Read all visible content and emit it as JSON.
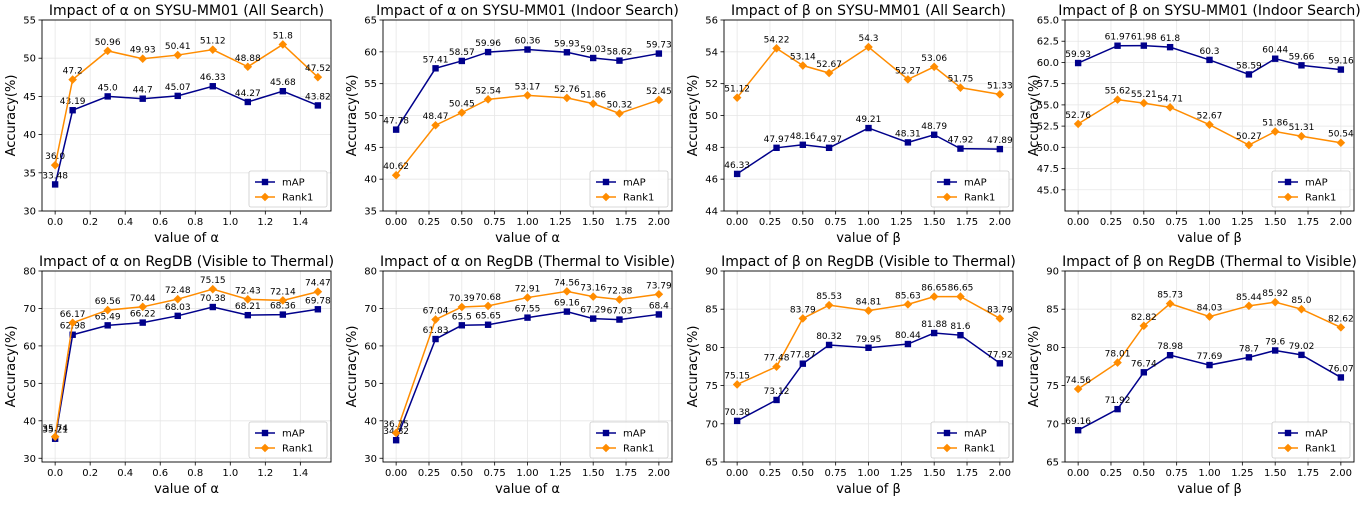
{
  "colors": {
    "mAP": "#00008b",
    "Rank1": "#ff8c00",
    "grid": "#e6e6e6",
    "axis": "#000000"
  },
  "chart_data": [
    {
      "type": "line",
      "title": "Impact of α on SYSU-MM01 (All Search)",
      "xlabel": "value of α",
      "ylabel": "Accuracy(%)",
      "x": [
        0.0,
        0.1,
        0.3,
        0.5,
        0.7,
        0.9,
        1.1,
        1.3,
        1.5
      ],
      "xlim": [
        -0.075,
        1.575
      ],
      "ylim": [
        30,
        55
      ],
      "xticks": [
        "0.0",
        "0.2",
        "0.4",
        "0.6",
        "0.8",
        "1.0",
        "1.2",
        "1.4"
      ],
      "yticks": [
        "30",
        "35",
        "40",
        "45",
        "50",
        "55"
      ],
      "grid": true,
      "legend": "lower-right",
      "series": [
        {
          "name": "mAP",
          "values": [
            33.48,
            43.19,
            45.0,
            44.7,
            45.07,
            46.33,
            44.27,
            45.68,
            43.82
          ],
          "labels": [
            "33.48",
            "43.19",
            "45.0",
            "44.7",
            "45.07",
            "46.33",
            "44.27",
            "45.68",
            "43.82"
          ]
        },
        {
          "name": "Rank1",
          "values": [
            36.0,
            47.2,
            50.96,
            49.93,
            50.41,
            51.12,
            48.88,
            51.8,
            47.52
          ],
          "labels": [
            "36.0",
            "47.2",
            "50.96",
            "49.93",
            "50.41",
            "51.12",
            "48.88",
            "51.8",
            "47.52"
          ]
        }
      ]
    },
    {
      "type": "line",
      "title": "Impact of α on SYSU-MM01 (Indoor Search)",
      "xlabel": "value of α",
      "ylabel": "Accuracy(%)",
      "x": [
        0.0,
        0.3,
        0.5,
        0.7,
        1.0,
        1.3,
        1.5,
        1.7,
        2.0
      ],
      "xlim": [
        -0.1,
        2.1
      ],
      "ylim": [
        35,
        65
      ],
      "xticks": [
        "0.00",
        "0.25",
        "0.50",
        "0.75",
        "1.00",
        "1.25",
        "1.50",
        "1.75",
        "2.00"
      ],
      "yticks": [
        "35",
        "40",
        "45",
        "50",
        "55",
        "60",
        "65"
      ],
      "grid": true,
      "legend": "lower-right",
      "series": [
        {
          "name": "mAP",
          "values": [
            47.78,
            57.41,
            58.57,
            59.96,
            60.36,
            59.93,
            59.03,
            58.62,
            59.73
          ],
          "labels": [
            "47.78",
            "57.41",
            "58.57",
            "59.96",
            "60.36",
            "59.93",
            "59.03",
            "58.62",
            "59.73"
          ]
        },
        {
          "name": "Rank1",
          "values": [
            40.62,
            48.47,
            50.45,
            52.54,
            53.17,
            52.76,
            51.86,
            50.32,
            52.45
          ],
          "labels": [
            "40.62",
            "48.47",
            "50.45",
            "52.54",
            "53.17",
            "52.76",
            "51.86",
            "50.32",
            "52.45"
          ]
        }
      ]
    },
    {
      "type": "line",
      "title": "Impact of β on SYSU-MM01 (All Search)",
      "xlabel": "value of β",
      "ylabel": "Accuracy(%)",
      "x": [
        0.0,
        0.3,
        0.5,
        0.7,
        1.0,
        1.3,
        1.5,
        1.7,
        2.0
      ],
      "xlim": [
        -0.1,
        2.1
      ],
      "ylim": [
        44,
        56
      ],
      "xticks": [
        "0.00",
        "0.25",
        "0.50",
        "0.75",
        "1.00",
        "1.25",
        "1.50",
        "1.75",
        "2.00"
      ],
      "yticks": [
        "44",
        "46",
        "48",
        "50",
        "52",
        "54",
        "56"
      ],
      "grid": true,
      "legend": "lower-right",
      "series": [
        {
          "name": "mAP",
          "values": [
            46.33,
            47.97,
            48.16,
            47.97,
            49.21,
            48.31,
            48.79,
            47.92,
            47.89
          ],
          "labels": [
            "46.33",
            "47.97",
            "48.16",
            "47.97",
            "49.21",
            "48.31",
            "48.79",
            "47.92",
            "47.89"
          ]
        },
        {
          "name": "Rank1",
          "values": [
            51.12,
            54.22,
            53.14,
            52.67,
            54.3,
            52.27,
            53.06,
            51.75,
            51.33
          ],
          "labels": [
            "51.12",
            "54.22",
            "53.14",
            "52.67",
            "54.3",
            "52.27",
            "53.06",
            "51.75",
            "51.33"
          ]
        }
      ]
    },
    {
      "type": "line",
      "title": "Impact of β on SYSU-MM01 (Indoor Search)",
      "xlabel": "value of β",
      "ylabel": "Accuracy(%)",
      "x": [
        0.0,
        0.3,
        0.5,
        0.7,
        1.0,
        1.3,
        1.5,
        1.7,
        2.0
      ],
      "xlim": [
        -0.1,
        2.1
      ],
      "ylim": [
        42.5,
        65
      ],
      "xticks": [
        "0.00",
        "0.25",
        "0.50",
        "0.75",
        "1.00",
        "1.25",
        "1.50",
        "1.75",
        "2.00"
      ],
      "yticks": [
        "45.0",
        "47.5",
        "50.0",
        "52.5",
        "55.0",
        "57.5",
        "60.0",
        "62.5",
        "65.0"
      ],
      "grid": true,
      "legend": "lower-right",
      "series": [
        {
          "name": "mAP",
          "values": [
            59.93,
            61.97,
            61.98,
            61.8,
            60.3,
            58.59,
            60.44,
            59.66,
            59.16
          ],
          "labels": [
            "59.93",
            "61.97",
            "61.98",
            "61.8",
            "60.3",
            "58.59",
            "60.44",
            "59.66",
            "59.16"
          ]
        },
        {
          "name": "Rank1",
          "values": [
            52.76,
            55.62,
            55.21,
            54.71,
            52.67,
            50.27,
            51.86,
            51.31,
            50.54
          ],
          "labels": [
            "52.76",
            "55.62",
            "55.21",
            "54.71",
            "52.67",
            "50.27",
            "51.86",
            "51.31",
            "50.54"
          ]
        }
      ]
    },
    {
      "type": "line",
      "title": "Impact of α on RegDB (Visible to Thermal)",
      "xlabel": "value of α",
      "ylabel": "Accuracy(%)",
      "x": [
        0.0,
        0.1,
        0.3,
        0.5,
        0.7,
        0.9,
        1.1,
        1.3,
        1.5
      ],
      "xlim": [
        -0.075,
        1.575
      ],
      "ylim": [
        29,
        80
      ],
      "xticks": [
        "0.0",
        "0.2",
        "0.4",
        "0.6",
        "0.8",
        "1.0",
        "1.2",
        "1.4"
      ],
      "yticks": [
        "30",
        "40",
        "50",
        "60",
        "70",
        "80"
      ],
      "grid": true,
      "legend": "lower-right",
      "series": [
        {
          "name": "mAP",
          "values": [
            35.21,
            62.98,
            65.49,
            66.22,
            68.03,
            70.38,
            68.21,
            68.36,
            69.78
          ],
          "labels": [
            "35.21",
            "62.98",
            "65.49",
            "66.22",
            "68.03",
            "70.38",
            "68.21",
            "68.36",
            "69.78"
          ]
        },
        {
          "name": "Rank1",
          "values": [
            35.74,
            66.17,
            69.56,
            70.44,
            72.48,
            75.15,
            72.43,
            72.14,
            74.47
          ],
          "labels": [
            "35.74",
            "66.17",
            "69.56",
            "70.44",
            "72.48",
            "75.15",
            "72.43",
            "72.14",
            "74.47"
          ]
        }
      ]
    },
    {
      "type": "line",
      "title": "Impact of α on RegDB (Thermal to Visible)",
      "xlabel": "value of α",
      "ylabel": "Accuracy(%)",
      "x": [
        0.0,
        0.3,
        0.5,
        0.7,
        1.0,
        1.3,
        1.5,
        1.7,
        2.0
      ],
      "xlim": [
        -0.1,
        2.1
      ],
      "ylim": [
        29,
        80
      ],
      "xticks": [
        "0.00",
        "0.25",
        "0.50",
        "0.75",
        "1.00",
        "1.25",
        "1.50",
        "1.75",
        "2.00"
      ],
      "yticks": [
        "30",
        "40",
        "50",
        "60",
        "70",
        "80"
      ],
      "grid": true,
      "legend": "lower-right",
      "series": [
        {
          "name": "mAP",
          "values": [
            34.82,
            61.83,
            65.5,
            65.65,
            67.55,
            69.16,
            67.29,
            67.03,
            68.4
          ],
          "labels": [
            "34.82",
            "61.83",
            "65.5",
            "65.65",
            "67.55",
            "69.16",
            "67.29",
            "67.03",
            "68.4"
          ]
        },
        {
          "name": "Rank1",
          "values": [
            36.75,
            67.04,
            70.39,
            70.68,
            72.91,
            74.56,
            73.16,
            72.38,
            73.79
          ],
          "labels": [
            "36.75",
            "67.04",
            "70.39",
            "70.68",
            "72.91",
            "74.56",
            "73.16",
            "72.38",
            "73.79"
          ]
        }
      ]
    },
    {
      "type": "line",
      "title": "Impact of β on RegDB (Visible to Thermal)",
      "xlabel": "value of β",
      "ylabel": "Accuracy(%)",
      "x": [
        0.0,
        0.3,
        0.5,
        0.7,
        1.0,
        1.3,
        1.5,
        1.7,
        2.0
      ],
      "xlim": [
        -0.1,
        2.1
      ],
      "ylim": [
        65,
        90
      ],
      "xticks": [
        "0.00",
        "0.25",
        "0.50",
        "0.75",
        "1.00",
        "1.25",
        "1.50",
        "1.75",
        "2.00"
      ],
      "yticks": [
        "65",
        "70",
        "75",
        "80",
        "85",
        "90"
      ],
      "grid": true,
      "legend": "lower-right",
      "series": [
        {
          "name": "mAP",
          "values": [
            70.38,
            73.12,
            77.87,
            80.32,
            79.95,
            80.44,
            81.88,
            81.6,
            77.92
          ],
          "labels": [
            "70.38",
            "73.12",
            "77.87",
            "80.32",
            "79.95",
            "80.44",
            "81.88",
            "81.6",
            "77.92"
          ]
        },
        {
          "name": "Rank1",
          "values": [
            75.15,
            77.48,
            83.79,
            85.53,
            84.81,
            85.63,
            86.65,
            86.65,
            83.79
          ],
          "labels": [
            "75.15",
            "77.48",
            "83.79",
            "85.53",
            "84.81",
            "85.63",
            "86.65",
            "86.65",
            "83.79"
          ]
        }
      ]
    },
    {
      "type": "line",
      "title": "Impact of β on RegDB (Thermal to Visible)",
      "xlabel": "value of β",
      "ylabel": "Accuracy(%)",
      "x": [
        0.0,
        0.3,
        0.5,
        0.7,
        1.0,
        1.3,
        1.5,
        1.7,
        2.0
      ],
      "xlim": [
        -0.1,
        2.1
      ],
      "ylim": [
        65,
        90
      ],
      "xticks": [
        "0.00",
        "0.25",
        "0.50",
        "0.75",
        "1.00",
        "1.25",
        "1.50",
        "1.75",
        "2.00"
      ],
      "yticks": [
        "65",
        "70",
        "75",
        "80",
        "85",
        "90"
      ],
      "grid": true,
      "legend": "lower-right",
      "series": [
        {
          "name": "mAP",
          "values": [
            69.16,
            71.92,
            76.74,
            78.98,
            77.69,
            78.7,
            79.6,
            79.02,
            76.07
          ],
          "labels": [
            "69.16",
            "71.92",
            "76.74",
            "78.98",
            "77.69",
            "78.7",
            "79.6",
            "79.02",
            "76.07"
          ]
        },
        {
          "name": "Rank1",
          "values": [
            74.56,
            78.01,
            82.82,
            85.73,
            84.03,
            85.44,
            85.92,
            85.0,
            82.62
          ],
          "labels": [
            "74.56",
            "78.01",
            "82.82",
            "85.73",
            "84.03",
            "85.44",
            "85.92",
            "85.0",
            "82.62"
          ]
        }
      ]
    }
  ]
}
